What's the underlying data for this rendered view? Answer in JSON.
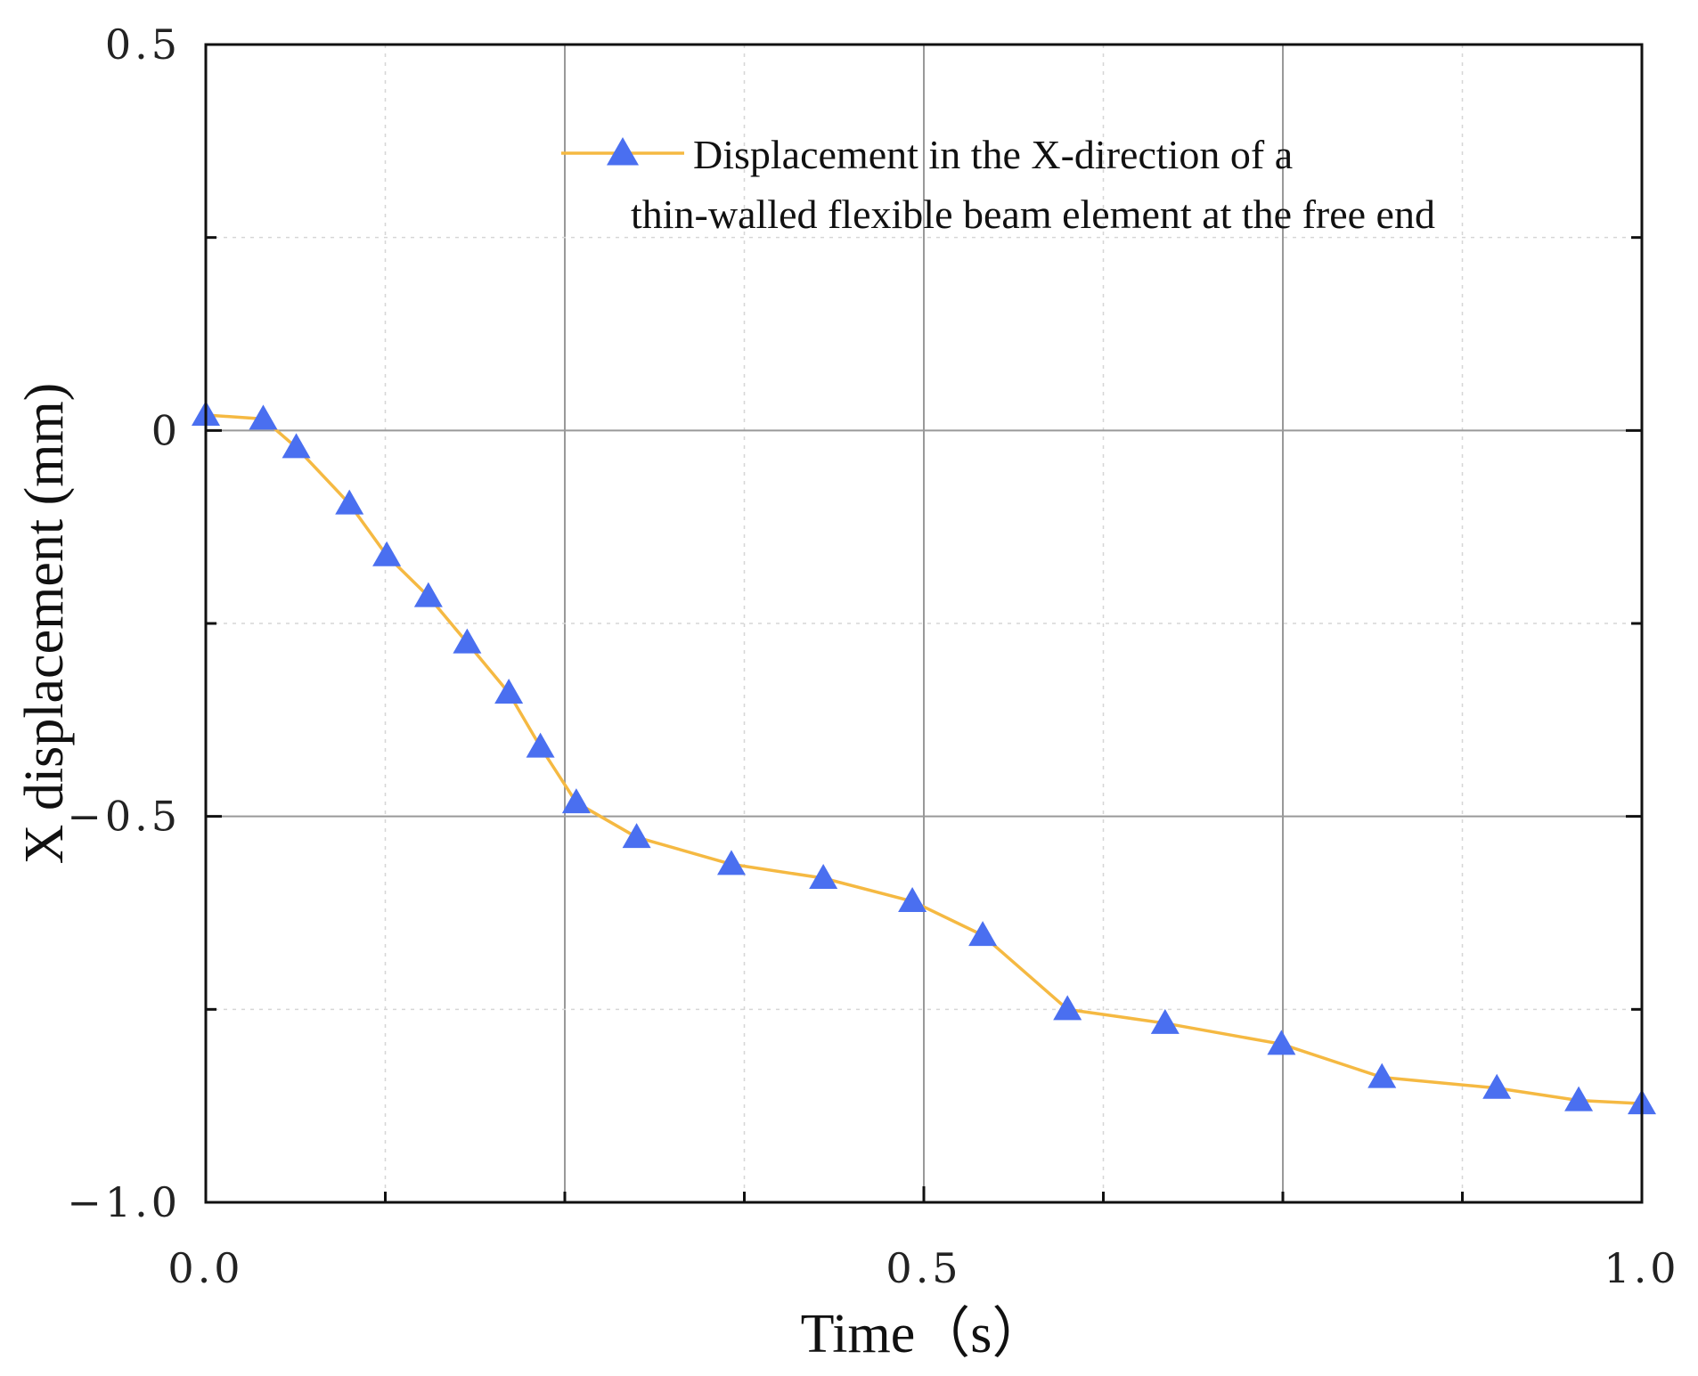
{
  "chart_data": {
    "type": "line",
    "xlabel": "Time（s）",
    "ylabel": "X displacement (mm)",
    "xlim": [
      0.0,
      1.0
    ],
    "ylim": [
      -1.0,
      0.5
    ],
    "x_ticks": [
      0.0,
      0.5,
      1.0
    ],
    "x_tick_labels": [
      "0.0",
      "0.5",
      "1.0"
    ],
    "y_ticks": [
      0.5,
      0,
      -0.5,
      -1.0
    ],
    "y_tick_labels": [
      "0.5",
      "0",
      "−0.5",
      "−1.0"
    ],
    "grid": true,
    "legend_position": "top-right",
    "series": [
      {
        "name": "Displacement in the X-direction of a thin-walled flexible beam element at the free end",
        "line_color": "#f5b942",
        "marker": "triangle",
        "marker_color": "#4a6ff0",
        "x": [
          0.0,
          0.04,
          0.063,
          0.1,
          0.126,
          0.155,
          0.182,
          0.211,
          0.233,
          0.258,
          0.3,
          0.366,
          0.43,
          0.492,
          0.541,
          0.6,
          0.668,
          0.749,
          0.819,
          0.899,
          0.956,
          1.0
        ],
        "y": [
          0.02,
          0.015,
          -0.022,
          -0.095,
          -0.162,
          -0.215,
          -0.275,
          -0.34,
          -0.41,
          -0.482,
          -0.527,
          -0.562,
          -0.58,
          -0.61,
          -0.654,
          -0.75,
          -0.768,
          -0.795,
          -0.838,
          -0.852,
          -0.868,
          -0.872
        ]
      }
    ],
    "legend_lines": [
      "Displacement in the X-direction of a",
      "thin-walled flexible beam element at the free end"
    ]
  }
}
